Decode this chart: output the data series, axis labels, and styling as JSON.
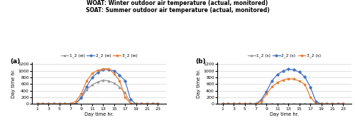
{
  "title_line1": "WOAT: Winter outdoor air temperature (actual, monitored)",
  "title_line2": "SOAT: Summer outdoor air temperature (actual, monitored)",
  "x": [
    1,
    2,
    3,
    4,
    5,
    6,
    7,
    8,
    9,
    10,
    11,
    12,
    13,
    14,
    15,
    16,
    17,
    18,
    19,
    20,
    21,
    22,
    23
  ],
  "winter": {
    "1_2": [
      0,
      0,
      0,
      0,
      0,
      0,
      0,
      10,
      170,
      430,
      580,
      660,
      720,
      690,
      630,
      510,
      340,
      20,
      0,
      0,
      0,
      0,
      0
    ],
    "2_2": [
      0,
      0,
      0,
      0,
      0,
      0,
      0,
      10,
      210,
      530,
      800,
      950,
      1040,
      1030,
      1000,
      870,
      700,
      130,
      0,
      0,
      0,
      0,
      0
    ],
    "3_2": [
      0,
      0,
      0,
      0,
      0,
      0,
      10,
      80,
      310,
      700,
      920,
      1010,
      1060,
      1055,
      910,
      700,
      200,
      10,
      0,
      0,
      0,
      0,
      0
    ]
  },
  "summer": {
    "1_2": [
      0,
      0,
      0,
      0,
      0,
      0,
      0,
      0,
      0,
      0,
      0,
      0,
      0,
      0,
      0,
      0,
      0,
      0,
      0,
      0,
      0,
      0,
      0
    ],
    "2_2": [
      0,
      0,
      0,
      0,
      0,
      0,
      0,
      120,
      380,
      700,
      890,
      990,
      1050,
      1030,
      960,
      810,
      510,
      80,
      0,
      0,
      0,
      0,
      0
    ],
    "3_2": [
      0,
      0,
      0,
      0,
      0,
      0,
      0,
      70,
      300,
      520,
      650,
      720,
      760,
      750,
      690,
      590,
      210,
      10,
      0,
      0,
      0,
      0,
      0
    ]
  },
  "colors": {
    "1_2": "#999999",
    "2_2": "#4472C4",
    "3_2": "#ED7D31"
  },
  "markers": {
    "1_2": "^",
    "2_2": "D",
    "3_2": "s"
  },
  "ylabel": "Day time hr.",
  "xlabel": "Day time hr.",
  "ylim": [
    0,
    1250
  ],
  "yticks": [
    0,
    200,
    400,
    600,
    800,
    1000,
    1200
  ],
  "xticks": [
    1,
    3,
    5,
    7,
    9,
    11,
    13,
    15,
    17,
    19,
    21,
    23
  ]
}
